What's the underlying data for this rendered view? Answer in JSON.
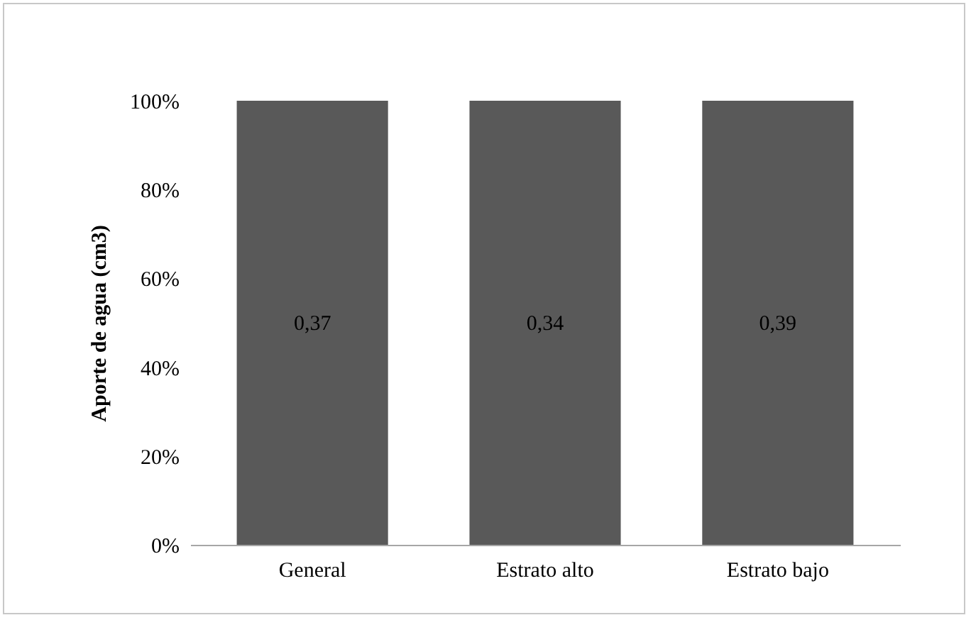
{
  "chart_data": {
    "type": "bar",
    "ylabel": "Aporte de agua (cm3)",
    "categories": [
      "General",
      "Estrato alto",
      "Estrato bajo"
    ],
    "values": [
      100,
      100,
      100
    ],
    "color": "#595959",
    "annotations": [
      "0,37",
      "0,34",
      "0,39"
    ],
    "ylim": [
      0,
      100
    ],
    "yticks": [
      {
        "value": 0,
        "label": "0%"
      },
      {
        "value": 20,
        "label": "20%"
      },
      {
        "value": 40,
        "label": "40%"
      },
      {
        "value": 60,
        "label": "60%"
      },
      {
        "value": 80,
        "label": "80%"
      },
      {
        "value": 100,
        "label": "100%"
      }
    ],
    "grid": false
  }
}
